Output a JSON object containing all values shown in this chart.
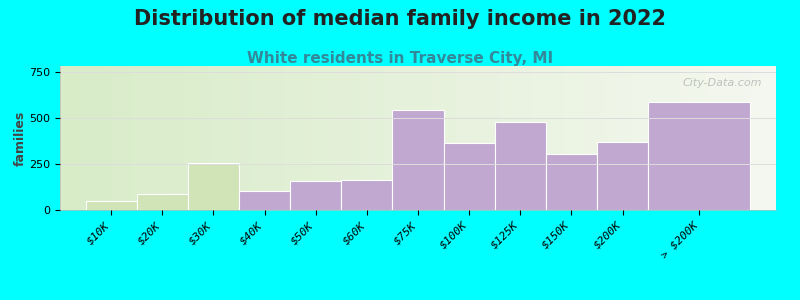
{
  "title": "Distribution of median family income in 2022",
  "subtitle": "White residents in Traverse City, MI",
  "ylabel": "families",
  "categories": [
    "$10K",
    "$20K",
    "$30K",
    "$40K",
    "$50K",
    "$60K",
    "$75K",
    "$100K",
    "$125K",
    "$150K",
    "$200K",
    "> $200K"
  ],
  "values": [
    50,
    88,
    255,
    105,
    158,
    162,
    540,
    365,
    478,
    305,
    368,
    585
  ],
  "bar_color_purple": "#c0a8d0",
  "bar_color_green": "#d0e4b8",
  "green_bars": [
    0,
    1,
    2
  ],
  "bar_widths": [
    1,
    1,
    1,
    1,
    1,
    1,
    1,
    1,
    1,
    1,
    1,
    2
  ],
  "bar_left_edges": [
    0,
    1,
    2,
    3,
    4,
    5,
    6,
    7,
    8,
    9,
    10,
    11
  ],
  "ylim": [
    0,
    780
  ],
  "yticks": [
    0,
    250,
    500,
    750
  ],
  "background_color": "#00ffff",
  "plot_bg_left": "#d8ecc8",
  "plot_bg_right": "#f0f4ec",
  "watermark": "City-Data.com",
  "title_fontsize": 15,
  "subtitle_fontsize": 11,
  "subtitle_color": "#338899",
  "ylabel_fontsize": 9,
  "tick_fontsize": 8,
  "grid_color": "#dddddd",
  "spine_color": "#bbbbbb",
  "title_color": "#222222"
}
